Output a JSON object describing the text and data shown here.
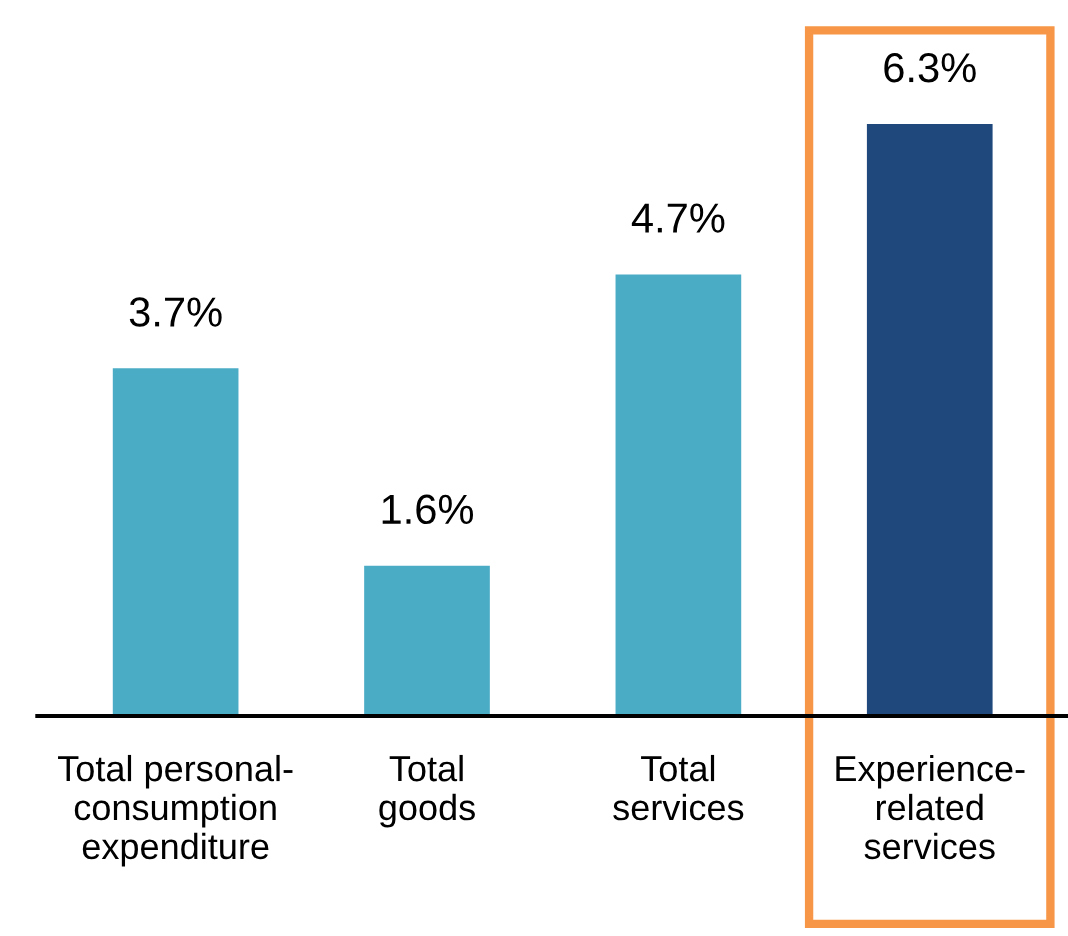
{
  "chart_data": {
    "type": "bar",
    "categories": [
      "Total personal-\nconsumption\nexpenditure",
      "Total\ngoods",
      "Total\nservices",
      "Experience-\nrelated\nservices"
    ],
    "values": [
      3.7,
      1.6,
      4.7,
      6.3
    ],
    "colors": [
      "#4bacc6",
      "#4bacc6",
      "#4bacc6",
      "#1f497d"
    ],
    "value_labels": [
      "3.7%",
      "1.6%",
      "4.7%",
      "6.3%"
    ],
    "grid": false
  }
}
